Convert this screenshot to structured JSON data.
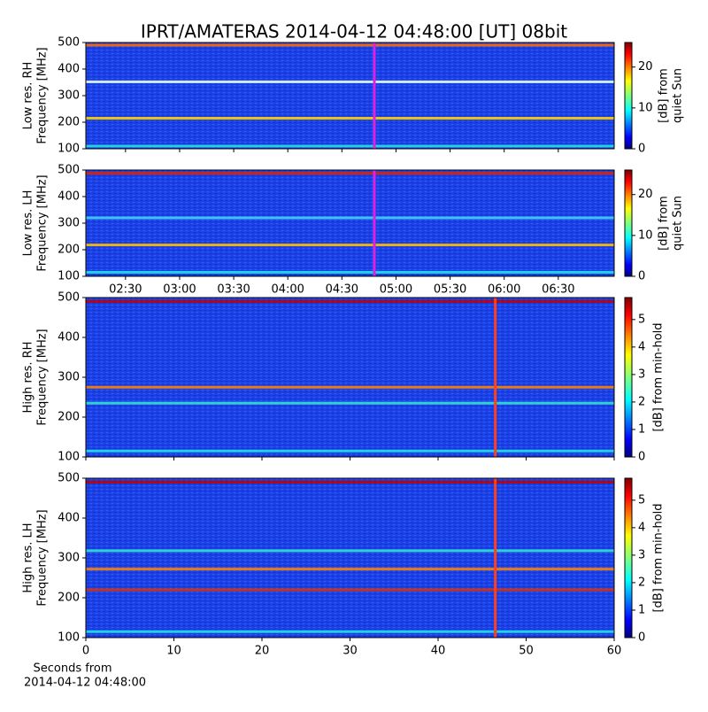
{
  "chart_data": [
    {
      "type": "spectrogram",
      "title": "IPRT/AMATERAS 2014-04-12 04:48:00 [UT]   08bit",
      "ylabel": [
        "Low res. RH",
        "Frequency [MHz]"
      ],
      "ylim": [
        100,
        500
      ],
      "yticks": [
        100,
        200,
        300,
        400,
        500
      ],
      "xlim": [
        "02:08",
        "07:01"
      ],
      "xticks": [
        "02:30",
        "03:00",
        "03:30",
        "04:00",
        "04:30",
        "05:00",
        "05:30",
        "06:00",
        "06:30"
      ],
      "show_xticklabels": false,
      "marker": "04:48",
      "marker_color": "#e020e0",
      "colorbar": {
        "label": [
          "[dB] from",
          "quiet Sun"
        ],
        "lim": [
          0,
          26
        ],
        "ticks": [
          0,
          10,
          20
        ]
      },
      "bands": [
        {
          "freq": 490,
          "color": "#ff6a00"
        },
        {
          "freq": 352,
          "color": "#e0ffff"
        },
        {
          "freq": 215,
          "color": "#ffd000"
        },
        {
          "freq": 110,
          "color": "#20e0e0"
        }
      ]
    },
    {
      "type": "spectrogram",
      "ylabel": [
        "Low res. LH",
        "Frequency [MHz]"
      ],
      "ylim": [
        100,
        500
      ],
      "yticks": [
        100,
        200,
        300,
        400,
        500
      ],
      "xlim": [
        "02:08",
        "07:01"
      ],
      "xticks": [
        "02:30",
        "03:00",
        "03:30",
        "04:00",
        "04:30",
        "05:00",
        "05:30",
        "06:00",
        "06:30"
      ],
      "show_xticklabels": true,
      "marker": "04:48",
      "marker_color": "#e020e0",
      "colorbar": {
        "label": [
          "[dB] from",
          "quiet Sun"
        ],
        "lim": [
          0,
          26
        ],
        "ticks": [
          0,
          10,
          20
        ]
      },
      "bands": [
        {
          "freq": 488,
          "color": "#e02000"
        },
        {
          "freq": 320,
          "color": "#40d0ff"
        },
        {
          "freq": 218,
          "color": "#ffc000"
        },
        {
          "freq": 115,
          "color": "#20e0e0"
        }
      ]
    },
    {
      "type": "spectrogram",
      "ylabel": [
        "High res. RH",
        "Frequency [MHz]"
      ],
      "ylim": [
        100,
        500
      ],
      "yticks": [
        100,
        200,
        300,
        400,
        500
      ],
      "xlim": [
        0,
        60
      ],
      "xticks": [
        0,
        10,
        20,
        30,
        40,
        50,
        60
      ],
      "show_xticklabels": false,
      "marker": 46.5,
      "marker_color": "#ff4020",
      "colorbar": {
        "label": [
          "[dB] from min-hold"
        ],
        "lim": [
          0,
          5.8
        ],
        "ticks": [
          0,
          1,
          2,
          3,
          4,
          5
        ]
      },
      "bands": [
        {
          "freq": 490,
          "color": "#c00000"
        },
        {
          "freq": 275,
          "color": "#ff8000"
        },
        {
          "freq": 235,
          "color": "#30e0d0"
        },
        {
          "freq": 115,
          "color": "#20e0e0"
        }
      ]
    },
    {
      "type": "spectrogram",
      "ylabel": [
        "High res. LH",
        "Frequency [MHz]"
      ],
      "ylim": [
        100,
        500
      ],
      "yticks": [
        100,
        200,
        300,
        400,
        500
      ],
      "xlim": [
        0,
        60
      ],
      "xticks": [
        0,
        10,
        20,
        30,
        40,
        50,
        60
      ],
      "show_xticklabels": true,
      "marker": 46.5,
      "marker_color": "#ff4020",
      "colorbar": {
        "label": [
          "[dB] from min-hold"
        ],
        "lim": [
          0,
          5.8
        ],
        "ticks": [
          0,
          1,
          2,
          3,
          4,
          5
        ]
      },
      "xlabel": [
        "Seconds from",
        "2014-04-12 04:48:00"
      ],
      "bands": [
        {
          "freq": 490,
          "color": "#c00000"
        },
        {
          "freq": 318,
          "color": "#30e0d0"
        },
        {
          "freq": 272,
          "color": "#ff8000"
        },
        {
          "freq": 220,
          "color": "#e03000"
        },
        {
          "freq": 115,
          "color": "#20e0e0"
        }
      ]
    }
  ]
}
